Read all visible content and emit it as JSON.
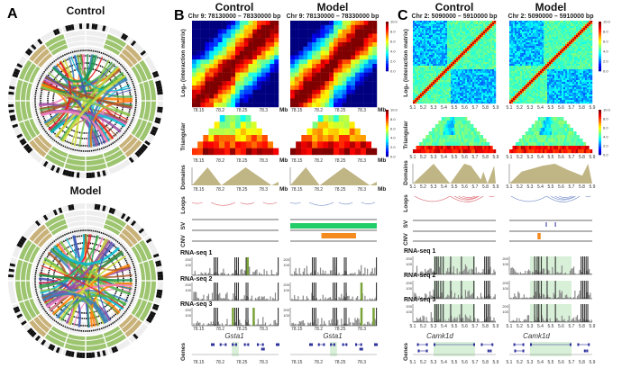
{
  "panel_a": {
    "label": "A",
    "control_title": "Control",
    "model_title": "Model"
  },
  "panel_b": {
    "label": "B",
    "control_title": "Control",
    "model_title": "Model",
    "region": "Chr 9:  78130000 – 78330000 bp",
    "ticks": [
      "78.15",
      "78.2",
      "78.25",
      "78.3"
    ],
    "unit": "Mb",
    "gene_name": "Gsta1"
  },
  "panel_c": {
    "label": "C",
    "control_title": "Control",
    "model_title": "Model",
    "region": "Chr 2:  5090000 – 5910000 bp",
    "ticks": [
      "5.1",
      "5.2",
      "5.3",
      "5.4",
      "5.5",
      "5.6",
      "5.7",
      "5.8",
      "5.9"
    ],
    "gene_name": "Camk1d"
  },
  "track_labels": {
    "matrix": "Log₂ (interaction matrix)",
    "triangular": "Triangular",
    "domains": "Domains",
    "loops": "Loops",
    "sv": "SV",
    "cnv": "CNV",
    "rna1": "RNA-seq 1",
    "rna2": "RNA-seq 2",
    "rna3": "RNA-seq 3",
    "genes": "Genes"
  },
  "colorbar_labels": [
    "10.0",
    "8.0",
    "6.0",
    "4.0",
    "2.0",
    "0.0"
  ],
  "rna_axis_labels": [
    "200",
    "100"
  ],
  "colors": {
    "domain_fill": "#b5a86e",
    "loop_control": "#d9606a",
    "loop_model": "#6b86c6",
    "sv_bar": "#22cc66",
    "cnv_bar": "#f58a1f",
    "gene": "#2b2f9a",
    "gene_highlight": "#d8efd8",
    "circos_green": "#9dc46f"
  }
}
